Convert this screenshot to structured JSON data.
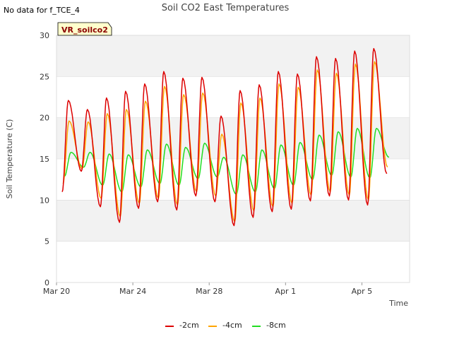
{
  "colors": {
    "band": "#f2f2f2",
    "grid": "#dcdcdc",
    "badge_bg": "#ffffcc",
    "badge_text": "#8b0000",
    "series": [
      "#dd0000",
      "#ffa500",
      "#22dd22"
    ]
  },
  "chart_data": {
    "type": "line",
    "title": "Soil CO2 East Temperatures",
    "no_data_note": "No data for f_TCE_4",
    "badge": "VR_soilco2",
    "xlabel": "Time",
    "ylabel": "Soil Temperature (C)",
    "xlim": [
      "2023-03-20",
      "2023-04-07T12:00"
    ],
    "ylim": [
      0,
      30
    ],
    "yticks": [
      0,
      5,
      10,
      15,
      20,
      25,
      30
    ],
    "xticks": [
      {
        "value": "2023-03-20",
        "label": "Mar 20"
      },
      {
        "value": "2023-03-24",
        "label": "Mar 24"
      },
      {
        "value": "2023-03-28",
        "label": "Mar 28"
      },
      {
        "value": "2023-04-01",
        "label": "Apr 1"
      },
      {
        "value": "2023-04-05",
        "label": "Apr 5"
      }
    ],
    "grid": true,
    "legend_position": "bottom",
    "series": [
      {
        "name": "-2cm",
        "daily_extremes": [
          {
            "date": "2023-03-20",
            "min": 11.0,
            "max": 22.1
          },
          {
            "date": "2023-03-21",
            "min": 13.5,
            "max": 21.0
          },
          {
            "date": "2023-03-22",
            "min": 9.2,
            "max": 22.4
          },
          {
            "date": "2023-03-23",
            "min": 7.3,
            "max": 23.2
          },
          {
            "date": "2023-03-24",
            "min": 9.0,
            "max": 24.1
          },
          {
            "date": "2023-03-25",
            "min": 9.8,
            "max": 25.6
          },
          {
            "date": "2023-03-26",
            "min": 8.8,
            "max": 24.8
          },
          {
            "date": "2023-03-27",
            "min": 10.5,
            "max": 24.9
          },
          {
            "date": "2023-03-28",
            "min": 9.8,
            "max": 20.2
          },
          {
            "date": "2023-03-29",
            "min": 6.9,
            "max": 23.3
          },
          {
            "date": "2023-03-30",
            "min": 7.9,
            "max": 24.0
          },
          {
            "date": "2023-03-31",
            "min": 8.6,
            "max": 25.6
          },
          {
            "date": "2023-04-01",
            "min": 8.9,
            "max": 25.3
          },
          {
            "date": "2023-04-02",
            "min": 9.9,
            "max": 27.4
          },
          {
            "date": "2023-04-03",
            "min": 10.5,
            "max": 27.2
          },
          {
            "date": "2023-04-04",
            "min": 10.0,
            "max": 28.1
          },
          {
            "date": "2023-04-05",
            "min": 9.4,
            "max": 28.4
          },
          {
            "date": "2023-04-06",
            "min": 13.2,
            "max": null
          }
        ]
      },
      {
        "name": "-4cm",
        "daily_extremes": [
          {
            "date": "2023-03-20",
            "min": 12.0,
            "max": 19.6
          },
          {
            "date": "2023-03-21",
            "min": 13.8,
            "max": 19.5
          },
          {
            "date": "2023-03-22",
            "min": 10.2,
            "max": 20.5
          },
          {
            "date": "2023-03-23",
            "min": 8.0,
            "max": 21.0
          },
          {
            "date": "2023-03-24",
            "min": 9.6,
            "max": 22.0
          },
          {
            "date": "2023-03-25",
            "min": 10.2,
            "max": 23.8
          },
          {
            "date": "2023-03-26",
            "min": 9.4,
            "max": 22.8
          },
          {
            "date": "2023-03-27",
            "min": 11.0,
            "max": 23.0
          },
          {
            "date": "2023-03-28",
            "min": 10.5,
            "max": 18.0
          },
          {
            "date": "2023-03-29",
            "min": 7.4,
            "max": 21.8
          },
          {
            "date": "2023-03-30",
            "min": 8.7,
            "max": 22.4
          },
          {
            "date": "2023-03-31",
            "min": 9.2,
            "max": 24.1
          },
          {
            "date": "2023-04-01",
            "min": 9.6,
            "max": 23.7
          },
          {
            "date": "2023-04-02",
            "min": 10.6,
            "max": 25.8
          },
          {
            "date": "2023-04-03",
            "min": 11.0,
            "max": 25.4
          },
          {
            "date": "2023-04-04",
            "min": 10.6,
            "max": 26.5
          },
          {
            "date": "2023-04-05",
            "min": 10.0,
            "max": 26.8
          },
          {
            "date": "2023-04-06",
            "min": 14.0,
            "max": null
          }
        ]
      },
      {
        "name": "-8cm",
        "daily_extremes": [
          {
            "date": "2023-03-20",
            "min": 12.9,
            "max": 15.8
          },
          {
            "date": "2023-03-21",
            "min": 14.0,
            "max": 15.8
          },
          {
            "date": "2023-03-22",
            "min": 11.8,
            "max": 15.6
          },
          {
            "date": "2023-03-23",
            "min": 11.0,
            "max": 15.5
          },
          {
            "date": "2023-03-24",
            "min": 11.6,
            "max": 16.1
          },
          {
            "date": "2023-03-25",
            "min": 12.0,
            "max": 16.8
          },
          {
            "date": "2023-03-26",
            "min": 11.8,
            "max": 16.4
          },
          {
            "date": "2023-03-27",
            "min": 12.6,
            "max": 16.9
          },
          {
            "date": "2023-03-28",
            "min": 12.8,
            "max": 15.2
          },
          {
            "date": "2023-03-29",
            "min": 10.7,
            "max": 15.5
          },
          {
            "date": "2023-03-30",
            "min": 11.0,
            "max": 16.1
          },
          {
            "date": "2023-03-31",
            "min": 11.4,
            "max": 16.7
          },
          {
            "date": "2023-04-01",
            "min": 11.8,
            "max": 17.0
          },
          {
            "date": "2023-04-02",
            "min": 12.5,
            "max": 17.9
          },
          {
            "date": "2023-04-03",
            "min": 13.0,
            "max": 18.3
          },
          {
            "date": "2023-04-04",
            "min": 12.8,
            "max": 18.7
          },
          {
            "date": "2023-04-05",
            "min": 12.7,
            "max": 18.7
          },
          {
            "date": "2023-04-06",
            "min": 15.2,
            "max": null
          }
        ]
      }
    ]
  }
}
